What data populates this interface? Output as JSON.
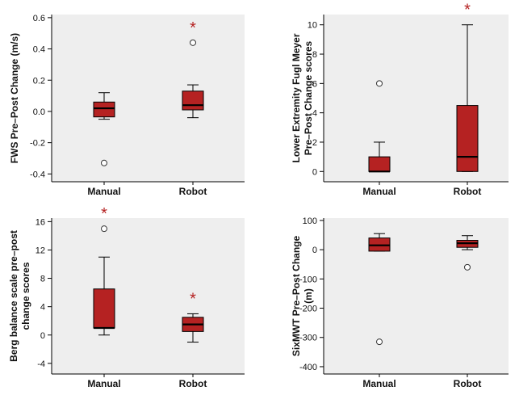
{
  "colors": {
    "plot_background": "#eeeeee",
    "box_fill": "#b52222",
    "box_stroke": "#000000",
    "star": "#b52222",
    "axis": "#000000"
  },
  "chart_data": [
    {
      "type": "box",
      "ylabel": "FWS Pre–Post Change (m/s)",
      "ylim": [
        -0.45,
        0.62
      ],
      "yticks": [
        -0.4,
        -0.2,
        0.0,
        0.2,
        0.4,
        0.6
      ],
      "ytick_labels": [
        "-0.4",
        "-0.2",
        "0.0",
        "0.2",
        "0.4",
        "0.6"
      ],
      "categories": [
        "Manual",
        "Robot"
      ],
      "boxes": [
        {
          "label": "Manual",
          "whisker_low": -0.05,
          "q1": -0.035,
          "median": 0.02,
          "q3": 0.06,
          "whisker_high": 0.12,
          "outliers": [
            -0.33
          ],
          "significant": false
        },
        {
          "label": "Robot",
          "whisker_low": -0.04,
          "q1": 0.01,
          "median": 0.04,
          "q3": 0.13,
          "whisker_high": 0.17,
          "outliers": [
            0.44
          ],
          "significant": true
        }
      ],
      "significance_marker": "*",
      "grid": false
    },
    {
      "type": "box",
      "ylabel": "Lower Extremity Fugl Meyer Pre–Post Change scores",
      "ylabel_lines": [
        "Lower Extremity Fugl Meyer",
        "Pre–Post Change scores"
      ],
      "ylim": [
        -0.7,
        10.7
      ],
      "yticks": [
        0,
        2,
        4,
        6,
        8,
        10
      ],
      "ytick_labels": [
        "0",
        "2",
        "4",
        "6",
        "8",
        "10"
      ],
      "categories": [
        "Manual",
        "Robot"
      ],
      "boxes": [
        {
          "label": "Manual",
          "whisker_low": 0,
          "q1": 0,
          "median": 0,
          "q3": 1,
          "whisker_high": 2,
          "outliers": [
            6
          ],
          "significant": false
        },
        {
          "label": "Robot",
          "whisker_low": 0,
          "q1": 0,
          "median": 1,
          "q3": 4.5,
          "whisker_high": 10,
          "outliers": [],
          "significant": true
        }
      ],
      "significance_marker": "*",
      "grid": false
    },
    {
      "type": "box",
      "ylabel": "Berg balance scale pre–post change scores",
      "ylabel_lines": [
        "Berg balance scale pre–post",
        "change scores"
      ],
      "ylim": [
        -5.5,
        16.5
      ],
      "yticks": [
        -4,
        0,
        4,
        8,
        12,
        16
      ],
      "ytick_labels": [
        "-4",
        "0",
        "4",
        "8",
        "12",
        "16"
      ],
      "categories": [
        "Manual",
        "Robot"
      ],
      "boxes": [
        {
          "label": "Manual",
          "whisker_low": 0,
          "q1": 1,
          "median": 1,
          "q3": 6.5,
          "whisker_high": 11,
          "outliers": [
            15
          ],
          "significant": true
        },
        {
          "label": "Robot",
          "whisker_low": -1,
          "q1": 0.5,
          "median": 1.5,
          "q3": 2.5,
          "whisker_high": 3,
          "outliers": [],
          "significant": true
        }
      ],
      "significance_marker": "*",
      "grid": false
    },
    {
      "type": "box",
      "ylabel": "SixMWT Pre–Post Change (m)",
      "ylabel_lines": [
        "SixMWT Pre–Post Change",
        "(m)"
      ],
      "ylim": [
        -425,
        108
      ],
      "yticks": [
        -400,
        -300,
        -200,
        -100,
        0,
        100
      ],
      "ytick_labels": [
        "-400",
        "-300",
        "-200",
        "-100",
        "0",
        "100"
      ],
      "categories": [
        "Manual",
        "Robot"
      ],
      "boxes": [
        {
          "label": "Manual",
          "whisker_low": -5,
          "q1": -5,
          "median": 15,
          "q3": 40,
          "whisker_high": 55,
          "outliers": [
            -315
          ],
          "significant": false
        },
        {
          "label": "Robot",
          "whisker_low": 0,
          "q1": 8,
          "median": 22,
          "q3": 32,
          "whisker_high": 48,
          "outliers": [
            -60
          ],
          "significant": false
        }
      ],
      "significance_marker": "",
      "grid": false
    }
  ]
}
